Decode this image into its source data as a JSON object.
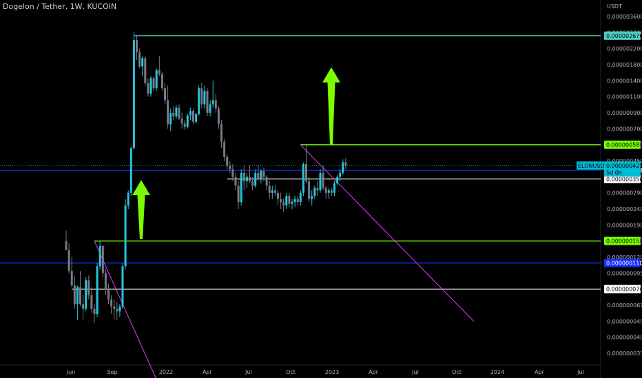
{
  "header": {
    "title": "Dogelon / Tether, 1W, KUCOIN"
  },
  "chart_data": {
    "type": "candlestick",
    "title": "Dogelon / Tether, 1W, KUCOIN",
    "currency_label": "USDT",
    "y_ticks": [
      "0.0000036000",
      "0.0000028000",
      "0.0000022000",
      "0.0000018000",
      "0.0000014000",
      "0.0000011000",
      "0.0000009000",
      "0.0000007000",
      "0.0000005800",
      "0.0000004500",
      "0.0000003600",
      "0.0000002900",
      "0.0000002400",
      "0.0000001900",
      "0.0000001500",
      "0.0000001200",
      "0.0000000950",
      "0.0000000760",
      "0.0000000610",
      "0.0000000490",
      "0.0000000400",
      "0.0000000330"
    ],
    "x_ticks": [
      "Jun",
      "Sep",
      "2022",
      "Apr",
      "Jul",
      "Oct",
      "2023",
      "Apr",
      "Jul",
      "Oct",
      "2024",
      "Apr",
      "Jul"
    ],
    "last_price": {
      "symbol": "ELONUSDT",
      "value": "0.0000004217",
      "countdown": "5d 0h",
      "color": "#00bcd4"
    },
    "price_tags": [
      {
        "value": "0.0000026700",
        "color": "#4dd0c7"
      },
      {
        "value": "0.0000005800",
        "color": "#7cfc00"
      },
      {
        "value": "0.0000003943",
        "color": "#1a2eff"
      },
      {
        "value": "0.0000003500",
        "color": "#ffffff"
      },
      {
        "value": "0.0000001500",
        "color": "#7cfc00"
      },
      {
        "value": "0.0000001100",
        "color": "#1a2eff"
      },
      {
        "value": "0.0000000760",
        "color": "#ffffff"
      }
    ],
    "arrows": [
      {
        "direction": "up",
        "color": "#7cfc00"
      },
      {
        "direction": "up",
        "color": "#7cfc00"
      }
    ],
    "colors": {
      "up": "#26c6da",
      "down": "#787b86",
      "trendline": "#e040fb"
    },
    "candles": [
      [
        1.5e-07,
        1.75e-07,
        1.35e-07,
        1.32e-07
      ],
      [
        1.32e-07,
        1.45e-07,
        9.5e-08,
        9.8e-08
      ],
      [
        9.8e-08,
        1.2e-07,
        7.8e-08,
        8e-08
      ],
      [
        8e-08,
        9.2e-08,
        5.8e-08,
        6.2e-08
      ],
      [
        6.2e-08,
        8e-08,
        5e-08,
        7.8e-08
      ],
      [
        7.8e-08,
        9.8e-08,
        6e-08,
        6.2e-08
      ],
      [
        6.2e-08,
        7e-08,
        5e-08,
        5.8e-08
      ],
      [
        5.8e-08,
        9e-08,
        5.6e-08,
        8.6e-08
      ],
      [
        8.6e-08,
        9.2e-08,
        6.6e-08,
        7e-08
      ],
      [
        7e-08,
        7.8e-08,
        5.5e-08,
        5.8e-08
      ],
      [
        5.8e-08,
        6.2e-08,
        4.8e-08,
        5.4e-08
      ],
      [
        5.4e-08,
        1.1e-07,
        5.2e-08,
        1.05e-07
      ],
      [
        1.05e-07,
        1.5e-07,
        1e-07,
        1.4e-07
      ],
      [
        1.4e-07,
        1.42e-07,
        9e-08,
        9.5e-08
      ],
      [
        9.5e-08,
        1e-07,
        7e-08,
        7.5e-08
      ],
      [
        7.5e-08,
        8.2e-08,
        6.2e-08,
        6.6e-08
      ],
      [
        6.6e-08,
        7e-08,
        5.4e-08,
        6e-08
      ],
      [
        6e-08,
        6.6e-08,
        5e-08,
        5.8e-08
      ],
      [
        5.8e-08,
        6.4e-08,
        5e-08,
        5.6e-08
      ],
      [
        5.6e-08,
        6.2e-08,
        5.2e-08,
        6e-08
      ],
      [
        6e-08,
        1.1e-07,
        5.8e-08,
        1.05e-07
      ],
      [
        1.05e-07,
        2.7e-07,
        1e-07,
        2.5e-07
      ],
      [
        2.5e-07,
        3e-07,
        2.4e-07,
        2.9e-07
      ],
      [
        2.9e-07,
        5.6e-07,
        2.8e-07,
        5.5e-07
      ],
      [
        5.5e-07,
        2.8e-06,
        5.4e-07,
        2.5e-06
      ],
      [
        2.5e-06,
        2.7e-06,
        1.9e-06,
        2.1e-06
      ],
      [
        2.1e-06,
        2.2e-06,
        1.7e-06,
        1.75e-06
      ],
      [
        1.75e-06,
        2e-06,
        1.5e-06,
        1.95e-06
      ],
      [
        1.95e-06,
        2e-06,
        1.3e-06,
        1.35e-06
      ],
      [
        1.35e-06,
        1.45e-06,
        1.1e-06,
        1.15e-06
      ],
      [
        1.15e-06,
        1.5e-06,
        1.1e-06,
        1.45e-06
      ],
      [
        1.45e-06,
        1.5e-06,
        1.2e-06,
        1.25e-06
      ],
      [
        1.25e-06,
        1.7e-06,
        1.2e-06,
        1.65e-06
      ],
      [
        1.65e-06,
        2e-06,
        1.5e-06,
        1.55e-06
      ],
      [
        1.55e-06,
        1.6e-06,
        1.2e-06,
        1.25e-06
      ],
      [
        1.25e-06,
        1.35e-06,
        1e-06,
        1.05e-06
      ],
      [
        1.05e-06,
        1.3e-06,
        7e-07,
        7.5e-07
      ],
      [
        7.5e-07,
        9.5e-07,
        6.8e-07,
        9e-07
      ],
      [
        9e-07,
        9.8e-07,
        8e-07,
        8.5e-07
      ],
      [
        8.5e-07,
        9.9e-07,
        8.2e-07,
        9.6e-07
      ],
      [
        9.6e-07,
        1e-06,
        8e-07,
        8.2e-07
      ],
      [
        8.2e-07,
        9e-07,
        7e-07,
        7.6e-07
      ],
      [
        7.6e-07,
        8e-07,
        6.9e-07,
        7.2e-07
      ],
      [
        7.2e-07,
        8.8e-07,
        7e-07,
        8.6e-07
      ],
      [
        8.6e-07,
        9.6e-07,
        8e-07,
        9.2e-07
      ],
      [
        9.2e-07,
        9.5e-07,
        7.5e-07,
        7.8e-07
      ],
      [
        7.8e-07,
        9e-07,
        7.6e-07,
        8.8e-07
      ],
      [
        8.8e-07,
        1.3e-06,
        8.6e-07,
        1.25e-06
      ],
      [
        1.25e-06,
        1.35e-06,
        9.5e-07,
        1e-06
      ],
      [
        1e-06,
        1.3e-06,
        9.5e-07,
        1.2e-06
      ],
      [
        1.2e-06,
        1.25e-06,
        8.5e-07,
        9e-07
      ],
      [
        9e-07,
        1.05e-06,
        8.5e-07,
        1e-06
      ],
      [
        1e-06,
        1.4e-06,
        9.6e-07,
        1.05e-06
      ],
      [
        1.05e-06,
        1.15e-06,
        9e-07,
        9.5e-07
      ],
      [
        9.5e-07,
        9.8e-07,
        7e-07,
        7.5e-07
      ],
      [
        7.5e-07,
        8e-07,
        5.5e-07,
        6e-07
      ],
      [
        6e-07,
        6.2e-07,
        4.5e-07,
        4.8e-07
      ],
      [
        4.8e-07,
        5e-07,
        4e-07,
        4.2e-07
      ],
      [
        4.2e-07,
        4.5e-07,
        3.8e-07,
        4e-07
      ],
      [
        4e-07,
        4.3e-07,
        3.4e-07,
        3.6e-07
      ],
      [
        3.6e-07,
        3.8e-07,
        3e-07,
        3.2e-07
      ],
      [
        3.2e-07,
        3.4e-07,
        2.4e-07,
        2.6e-07
      ],
      [
        2.6e-07,
        4e-07,
        2.5e-07,
        3.8e-07
      ],
      [
        3.8e-07,
        4.2e-07,
        3e-07,
        3.4e-07
      ],
      [
        3.4e-07,
        3.8e-07,
        3.1e-07,
        3.6e-07
      ],
      [
        3.6e-07,
        4.2e-07,
        3.3e-07,
        3.4e-07
      ],
      [
        3.4e-07,
        3.6e-07,
        3e-07,
        3.2e-07
      ],
      [
        3.2e-07,
        4e-07,
        3.1e-07,
        3.8e-07
      ],
      [
        3.8e-07,
        4.2e-07,
        3.4e-07,
        3.5e-07
      ],
      [
        3.5e-07,
        4e-07,
        3.3e-07,
        3.9e-07
      ],
      [
        3.9e-07,
        4.1e-07,
        3.4e-07,
        3.6e-07
      ],
      [
        3.6e-07,
        3.7e-07,
        3e-07,
        3.2e-07
      ],
      [
        3.2e-07,
        3.4e-07,
        2.7e-07,
        2.9e-07
      ],
      [
        2.9e-07,
        3.2e-07,
        2.7e-07,
        3e-07
      ],
      [
        3e-07,
        3.2e-07,
        2.8e-07,
        2.9e-07
      ],
      [
        2.9e-07,
        3e-07,
        2.5e-07,
        2.7e-07
      ],
      [
        2.7e-07,
        2.9e-07,
        2.4e-07,
        2.6e-07
      ],
      [
        2.6e-07,
        2.7e-07,
        2.3e-07,
        2.5e-07
      ],
      [
        2.5e-07,
        2.9e-07,
        2.4e-07,
        2.8e-07
      ],
      [
        2.8e-07,
        2.9e-07,
        2.45e-07,
        2.55e-07
      ],
      [
        2.55e-07,
        2.7e-07,
        2.4e-07,
        2.6e-07
      ],
      [
        2.6e-07,
        2.8e-07,
        2.45e-07,
        2.7e-07
      ],
      [
        2.7e-07,
        2.8e-07,
        2.5e-07,
        2.6e-07
      ],
      [
        2.6e-07,
        3e-07,
        2.5e-07,
        2.9e-07
      ],
      [
        2.9e-07,
        4.4e-07,
        2.8e-07,
        4.3e-07
      ],
      [
        4.3e-07,
        5.8e-07,
        3.3e-07,
        3.4e-07
      ],
      [
        3.4e-07,
        3.6e-07,
        2.6e-07,
        2.7e-07
      ],
      [
        2.7e-07,
        3e-07,
        2.5e-07,
        2.8e-07
      ],
      [
        2.8e-07,
        3.2e-07,
        2.7e-07,
        3.1e-07
      ],
      [
        3.1e-07,
        3.4e-07,
        2.8e-07,
        3e-07
      ],
      [
        3e-07,
        4e-07,
        2.9e-07,
        3.8e-07
      ],
      [
        3.8e-07,
        4.2e-07,
        3e-07,
        3.1e-07
      ],
      [
        3.1e-07,
        3.2e-07,
        2.7e-07,
        2.9e-07
      ],
      [
        2.9e-07,
        3.1e-07,
        2.7e-07,
        3e-07
      ],
      [
        3e-07,
        3.1e-07,
        2.8e-07,
        2.9e-07
      ],
      [
        2.9e-07,
        3.4e-07,
        2.8e-07,
        3.3e-07
      ],
      [
        3.3e-07,
        3.7e-07,
        3.2e-07,
        3.6e-07
      ],
      [
        3.6e-07,
        4e-07,
        3.4e-07,
        3.8e-07
      ],
      [
        3.8e-07,
        4.6e-07,
        3.7e-07,
        4.4e-07
      ],
      [
        4.4e-07,
        4.7e-07,
        4e-07,
        4.22e-07
      ]
    ]
  }
}
